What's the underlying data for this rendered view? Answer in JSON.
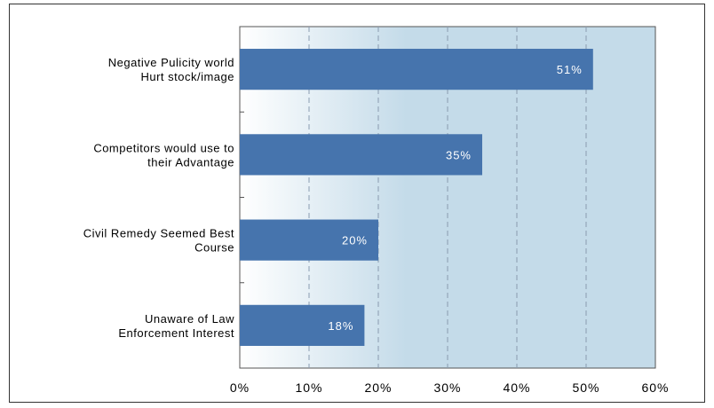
{
  "chart_data": {
    "type": "bar",
    "orientation": "horizontal",
    "categories": [
      [
        "Negative Pulicity world",
        "Hurt stock/image"
      ],
      [
        "Competitors would use to",
        "their Advantage"
      ],
      [
        "Civil Remedy Seemed Best",
        "Course"
      ],
      [
        "Unaware of Law",
        "Enforcement Interest"
      ]
    ],
    "values": [
      51,
      35,
      20,
      18
    ],
    "data_labels": [
      "51%",
      "35%",
      "20%",
      "18%"
    ],
    "x_ticks": [
      "0%",
      "10%",
      "20%",
      "30%",
      "40%",
      "50%",
      "60%"
    ],
    "xlim": [
      0,
      60
    ],
    "grid": "vertical-dashed",
    "title": "",
    "xlabel": "",
    "ylabel": "",
    "colors": {
      "bar": "#4674ad",
      "plot_bg_end": "#c4dbe9",
      "grid": "#8a9bb0"
    }
  }
}
